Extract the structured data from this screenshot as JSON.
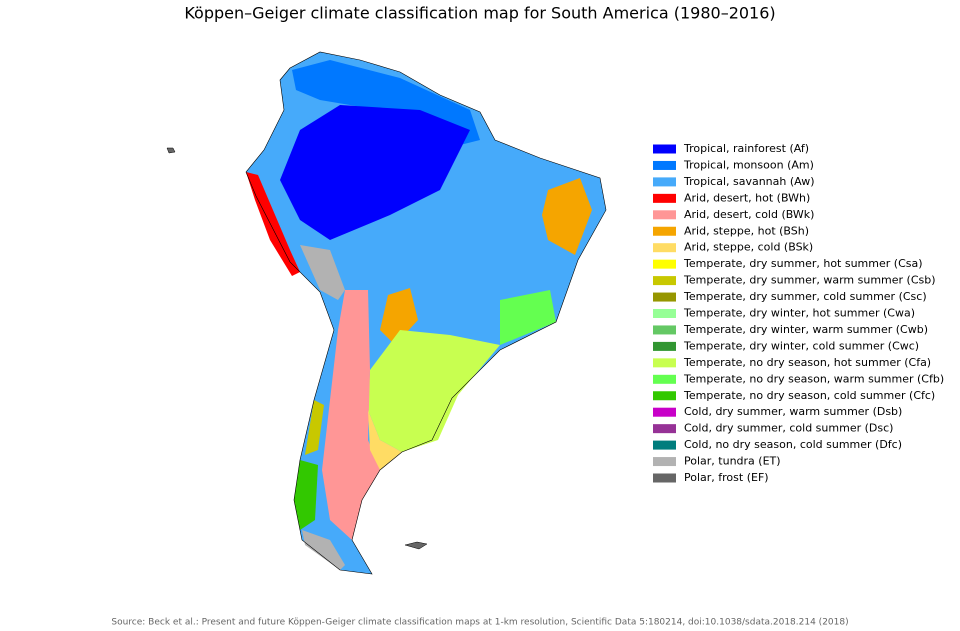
{
  "title": "Köppen–Geiger climate classification map for South America (1980–2016)",
  "legend": [
    {
      "label": "Tropical, rainforest (Af)",
      "color": "#0000fe"
    },
    {
      "label": "Tropical, monsoon (Am)",
      "color": "#0078ff"
    },
    {
      "label": "Tropical, savannah (Aw)",
      "color": "#46aafa"
    },
    {
      "label": "Arid, desert, hot (BWh)",
      "color": "#ff0000"
    },
    {
      "label": "Arid, desert, cold (BWk)",
      "color": "#ff9696"
    },
    {
      "label": "Arid, steppe, hot (BSh)",
      "color": "#f5a500"
    },
    {
      "label": "Arid, steppe, cold (BSk)",
      "color": "#ffdc64"
    },
    {
      "label": "Temperate, dry summer, hot summer (Csa)",
      "color": "#ffff00"
    },
    {
      "label": "Temperate, dry summer, warm summer (Csb)",
      "color": "#c8c800"
    },
    {
      "label": "Temperate, dry summer, cold summer (Csc)",
      "color": "#969600"
    },
    {
      "label": "Temperate, dry winter, hot summer (Cwa)",
      "color": "#96ff96"
    },
    {
      "label": "Temperate, dry winter, warm summer (Cwb)",
      "color": "#64c864"
    },
    {
      "label": "Temperate, dry winter, cold summer (Cwc)",
      "color": "#329632"
    },
    {
      "label": "Temperate, no dry season, hot summer (Cfa)",
      "color": "#c8ff50"
    },
    {
      "label": "Temperate, no dry season, warm summer (Cfb)",
      "color": "#64ff50"
    },
    {
      "label": "Temperate, no dry season, cold summer (Cfc)",
      "color": "#32c800"
    },
    {
      "label": "Cold, dry summer, warm summer (Dsb)",
      "color": "#c800c8"
    },
    {
      "label": "Cold, dry summer, cold summer (Dsc)",
      "color": "#963296"
    },
    {
      "label": "Cold, no dry season, cold summer (Dfc)",
      "color": "#007d7d"
    },
    {
      "label": "Polar, tundra (ET)",
      "color": "#b2b2b2"
    },
    {
      "label": "Polar, frost (EF)",
      "color": "#666666"
    }
  ],
  "source": "Source: Beck et al.: Present and future Köppen-Geiger climate classification maps at 1-km resolution, Scientific Data 5:180214, doi:10.1038/sdata.2018.214 (2018)"
}
